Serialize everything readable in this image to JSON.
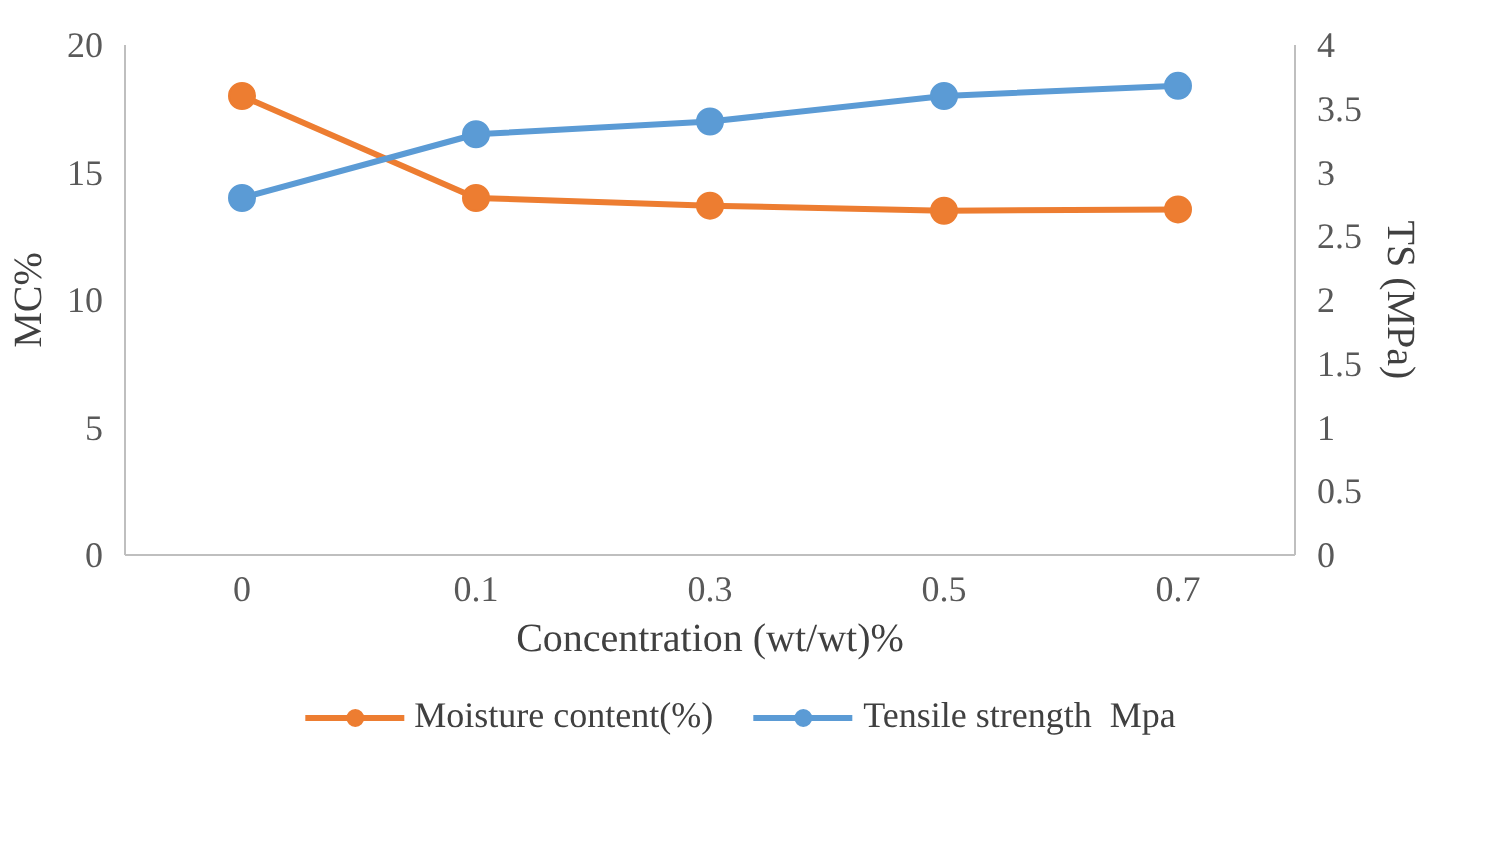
{
  "chart_data": {
    "type": "line",
    "xlabel": "Concentration (wt/wt)%",
    "ylabel": "MC%",
    "y2label": "TS (MPa)",
    "categories": [
      "0",
      "0.1",
      "0.3",
      "0.5",
      "0.7"
    ],
    "series": [
      {
        "name": "Moisture content(%)",
        "color": "#ed7d31",
        "values": [
          18,
          14,
          13.7,
          13.5,
          13.55
        ]
      },
      {
        "name": "Tensile strength  Mpa",
        "color": "#5b9bd5",
        "values": [
          2.8,
          3.3,
          3.4,
          3.6,
          3.68
        ],
        "axis": "y2"
      }
    ],
    "ylim": [
      0,
      20
    ],
    "yticks": [
      0,
      5,
      10,
      15,
      20
    ],
    "y2lim": [
      0,
      4
    ],
    "y2ticks": [
      0,
      0.5,
      1,
      1.5,
      2,
      2.5,
      3,
      3.5,
      4
    ],
    "legend": "bottom",
    "marker": "circle"
  }
}
